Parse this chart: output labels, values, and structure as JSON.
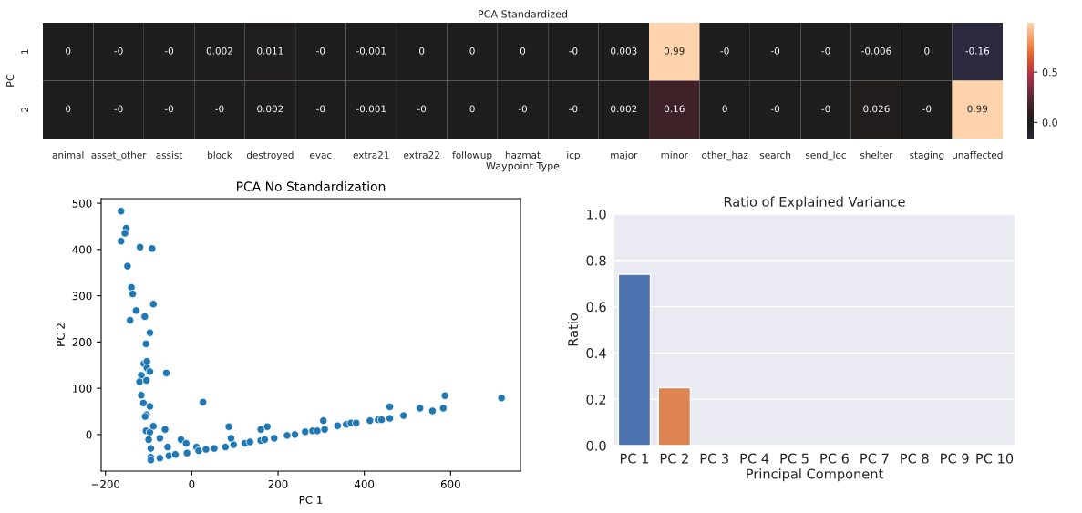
{
  "chart_data": [
    {
      "type": "heatmap",
      "title": "PCA Standardized",
      "xlabel": "Waypoint Type",
      "ylabel": "PC",
      "categories": [
        "animal",
        "asset_other",
        "assist",
        "block",
        "destroyed",
        "evac",
        "extra21",
        "extra22",
        "followup",
        "hazmat",
        "icp",
        "major",
        "minor",
        "other_haz",
        "search",
        "send_loc",
        "shelter",
        "staging",
        "unaffected"
      ],
      "y_categories": [
        "1",
        "2"
      ],
      "cells": [
        [
          0,
          0,
          0,
          0.002,
          0.011,
          0,
          -0.001,
          0,
          0,
          0,
          0,
          0.003,
          0.99,
          0,
          0,
          0,
          -0.006,
          0,
          -0.16
        ],
        [
          0,
          0,
          0,
          0,
          0.002,
          0,
          -0.001,
          0,
          0,
          0,
          0,
          0.002,
          0.16,
          0,
          0,
          0,
          0.026,
          0,
          0.99
        ]
      ],
      "cell_labels": [
        [
          "0",
          "-0",
          "-0",
          "0.002",
          "0.011",
          "-0",
          "-0.001",
          "0",
          "0",
          "0",
          "-0",
          "0.003",
          "0.99",
          "-0",
          "-0",
          "-0",
          "-0.006",
          "0",
          "-0.16"
        ],
        [
          "0",
          "-0",
          "-0",
          "-0",
          "0.002",
          "-0",
          "-0.001",
          "-0",
          "0",
          "-0",
          "-0",
          "0.002",
          "0.16",
          "0",
          "-0",
          "-0",
          "0.026",
          "-0",
          "0.99"
        ]
      ],
      "clim": [
        -0.16,
        0.99
      ],
      "cticks": [
        {
          "value": 0,
          "label": "0.0"
        },
        {
          "value": 0.5,
          "label": "0.5"
        }
      ]
    },
    {
      "type": "scatter",
      "title": "PCA No Standardization",
      "xlabel": "PC 1",
      "ylabel": "PC 2",
      "marker": "circle",
      "color": "#1f77b4",
      "x": [
        -164,
        -152,
        -155,
        -164,
        -120,
        -92,
        -149,
        -140,
        -137,
        -129,
        -143,
        -109,
        -89,
        -97,
        -106,
        -111,
        -104,
        -104,
        -97,
        -117,
        -121,
        -105,
        -59,
        -117,
        -112,
        -97,
        -105,
        -108,
        26,
        -106,
        -97,
        -89,
        -62,
        -74,
        -100,
        -95,
        -56,
        -25,
        -13,
        11,
        -95,
        -95,
        -74,
        -53,
        -38,
        -11,
        16,
        33,
        52,
        78,
        97,
        86,
        91,
        123,
        135,
        160,
        169,
        191,
        160,
        175,
        221,
        239,
        263,
        280,
        291,
        308,
        305,
        338,
        358,
        369,
        381,
        413,
        432,
        440,
        459,
        459,
        491,
        529,
        558,
        583,
        587,
        718
      ],
      "values": [
        483,
        446,
        435,
        418,
        405,
        402,
        364,
        318,
        304,
        268,
        247,
        255,
        282,
        220,
        196,
        153,
        158,
        144,
        136,
        128,
        114,
        117,
        133,
        85,
        68,
        61,
        43,
        39,
        70,
        8,
        5,
        18,
        11,
        -8,
        -11,
        -30,
        -27,
        -11,
        -19,
        -27,
        -49,
        -55,
        -51,
        -46,
        -43,
        -40,
        -35,
        -32,
        -30,
        -27,
        -22,
        17,
        -8,
        -19,
        -16,
        -13,
        -11,
        -8,
        11,
        17,
        -2,
        0,
        6,
        8,
        8,
        11,
        30,
        19,
        22,
        25,
        25,
        30,
        32,
        32,
        35,
        60,
        41,
        57,
        51,
        57,
        84,
        79
      ],
      "xlim": [
        -210,
        762
      ],
      "ylim": [
        -79,
        510
      ],
      "xticks": [
        {
          "value": -200,
          "label": "−200"
        },
        0,
        200,
        400,
        600
      ],
      "yticks": [
        0,
        100,
        200,
        300,
        400,
        500
      ]
    },
    {
      "type": "bar",
      "title": "Ratio of Explained Variance",
      "xlabel": "Principal Component",
      "ylabel": "Ratio",
      "categories": [
        "PC 1",
        "PC 2",
        "PC 3",
        "PC 4",
        "PC 5",
        "PC 6",
        "PC 7",
        "PC 8",
        "PC 9",
        "PC 10"
      ],
      "values": [
        0.74,
        0.25,
        null,
        null,
        null,
        null,
        null,
        null,
        null,
        null
      ],
      "colors": [
        "#4c72b0",
        "#dd8452",
        null,
        null,
        null,
        null,
        null,
        null,
        null,
        null
      ],
      "ylim": [
        0,
        1.0
      ],
      "yticks": [
        {
          "value": 0,
          "label": "0.0"
        },
        {
          "value": 0.2,
          "label": "0.2"
        },
        {
          "value": 0.4,
          "label": "0.4"
        },
        {
          "value": 0.6,
          "label": "0.6"
        },
        {
          "value": 0.8,
          "label": "0.8"
        },
        {
          "value": 1.0,
          "label": "1.0"
        }
      ],
      "grid": "y"
    }
  ]
}
